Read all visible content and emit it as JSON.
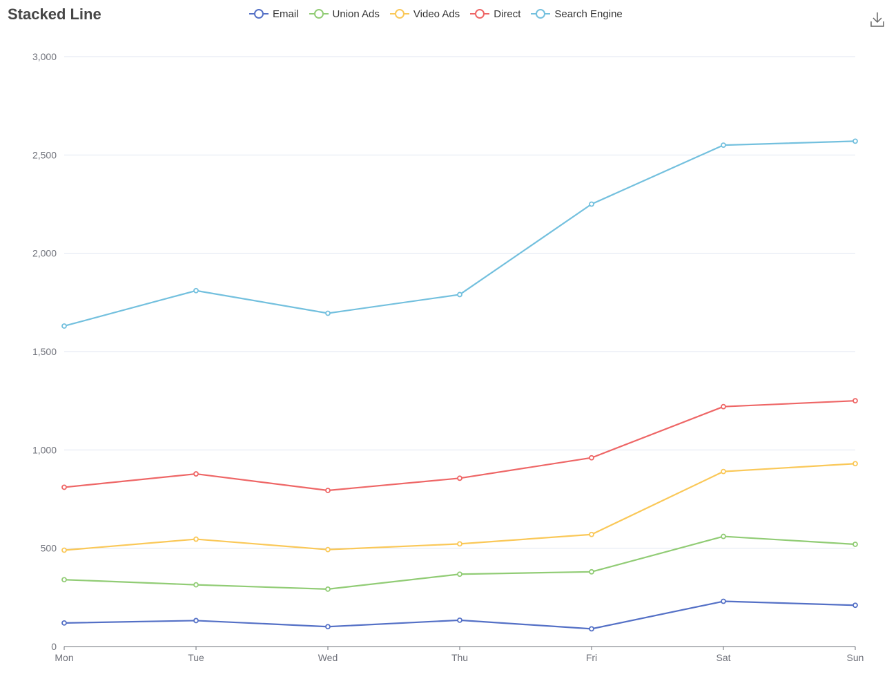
{
  "chart_data": {
    "type": "line",
    "title": "Stacked Line",
    "stacked": true,
    "categories": [
      "Mon",
      "Tue",
      "Wed",
      "Thu",
      "Fri",
      "Sat",
      "Sun"
    ],
    "series": [
      {
        "name": "Email",
        "color": "#5470c6",
        "values": [
          120,
          132,
          101,
          134,
          90,
          230,
          210
        ]
      },
      {
        "name": "Union Ads",
        "color": "#91cc75",
        "values": [
          220,
          182,
          191,
          234,
          290,
          330,
          310
        ]
      },
      {
        "name": "Video Ads",
        "color": "#fac858",
        "values": [
          150,
          232,
          201,
          154,
          190,
          330,
          410
        ]
      },
      {
        "name": "Direct",
        "color": "#ee6666",
        "values": [
          320,
          332,
          301,
          334,
          390,
          330,
          320
        ]
      },
      {
        "name": "Search Engine",
        "color": "#73c0de",
        "values": [
          820,
          932,
          901,
          934,
          1290,
          1330,
          1320
        ]
      }
    ],
    "ylim": [
      0,
      3000
    ],
    "yticks": [
      0,
      500,
      1000,
      1500,
      2000,
      2500,
      3000
    ],
    "ytick_labels": [
      "0",
      "500",
      "1,000",
      "1,500",
      "2,000",
      "2,500",
      "3,000"
    ],
    "grid": true,
    "legend_position": "top-center"
  },
  "toolbar": {
    "download_icon": "download-icon"
  }
}
